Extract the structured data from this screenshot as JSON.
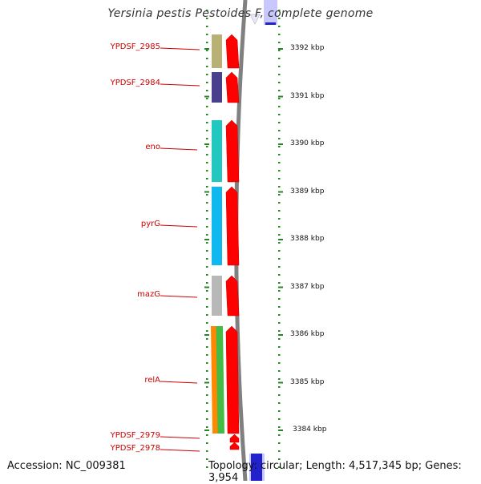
{
  "title": "Yersinia pestis Pestoides F, complete genome",
  "footer": {
    "accession": "Accession: NC_009381",
    "topology": "Topology: circular; Length: 4,517,345 bp; Genes: 3,954"
  },
  "colors": {
    "label_red": "#cc0000",
    "arrow_red": "#ff0000",
    "tick_green": "#228822",
    "backbone_gray": "#808080"
  },
  "genes": [
    {
      "label": "YPDSF_2985",
      "color": "#b8b074"
    },
    {
      "label": "YPDSF_2984",
      "color": "#48408c"
    },
    {
      "label": "eno",
      "color": "#20c8c0"
    },
    {
      "label": "pyrG",
      "color": "#10b8f0"
    },
    {
      "label": "mazG",
      "color": "#b8b8b8"
    },
    {
      "label": "relA",
      "colors": [
        "#ff8800",
        "#44bb44"
      ]
    },
    {
      "label": "YPDSF_2979"
    },
    {
      "label": "YPDSF_2978"
    }
  ],
  "scale": {
    "unit": "kbp",
    "labels": [
      "3392 kbp",
      "3391 kbp",
      "3390 kbp",
      "3389 kbp",
      "3388 kbp",
      "3387 kbp",
      "3386 kbp",
      "3385 kbp",
      "3384 kbp"
    ]
  }
}
